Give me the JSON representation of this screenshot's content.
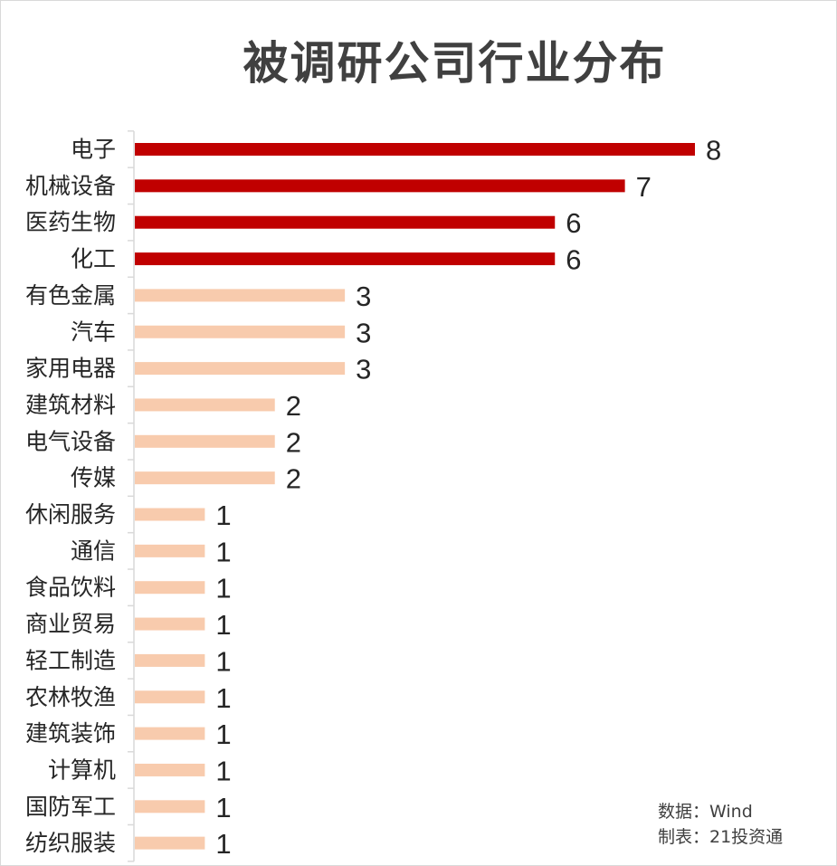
{
  "chart_data": {
    "type": "bar",
    "orientation": "horizontal",
    "title": "被调研公司行业分布",
    "categories": [
      "电子",
      "机械设备",
      "医药生物",
      "化工",
      "有色金属",
      "汽车",
      "家用电器",
      "建筑材料",
      "电气设备",
      "传媒",
      "休闲服务",
      "通信",
      "食品饮料",
      "商业贸易",
      "轻工制造",
      "农林牧渔",
      "建筑装饰",
      "计算机",
      "国防军工",
      "纺织服装"
    ],
    "values": [
      8,
      7,
      6,
      6,
      3,
      3,
      3,
      2,
      2,
      2,
      1,
      1,
      1,
      1,
      1,
      1,
      1,
      1,
      1,
      1
    ],
    "xlim": [
      0,
      8
    ],
    "grid": false,
    "colors": {
      "highlight": "#c00000",
      "normal": "#f8cbad"
    },
    "highlight_count": 4
  },
  "notes": {
    "source": "数据：Wind",
    "maker": "制表：21投资通"
  }
}
